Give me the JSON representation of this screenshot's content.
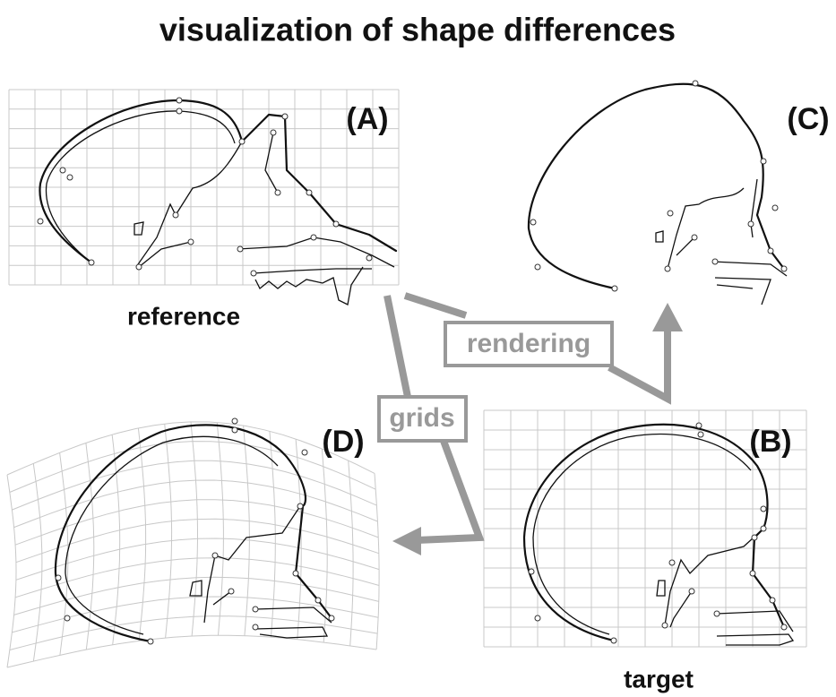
{
  "header": {
    "title": "visualization of shape differences"
  },
  "panels": [
    {
      "label": "(A)",
      "caption": "reference"
    },
    {
      "label": "(B)",
      "caption": "target"
    },
    {
      "label": "(C)"
    },
    {
      "label": "(D)"
    }
  ],
  "arrows": [
    {
      "label": "rendering"
    },
    {
      "label": "grids"
    }
  ]
}
